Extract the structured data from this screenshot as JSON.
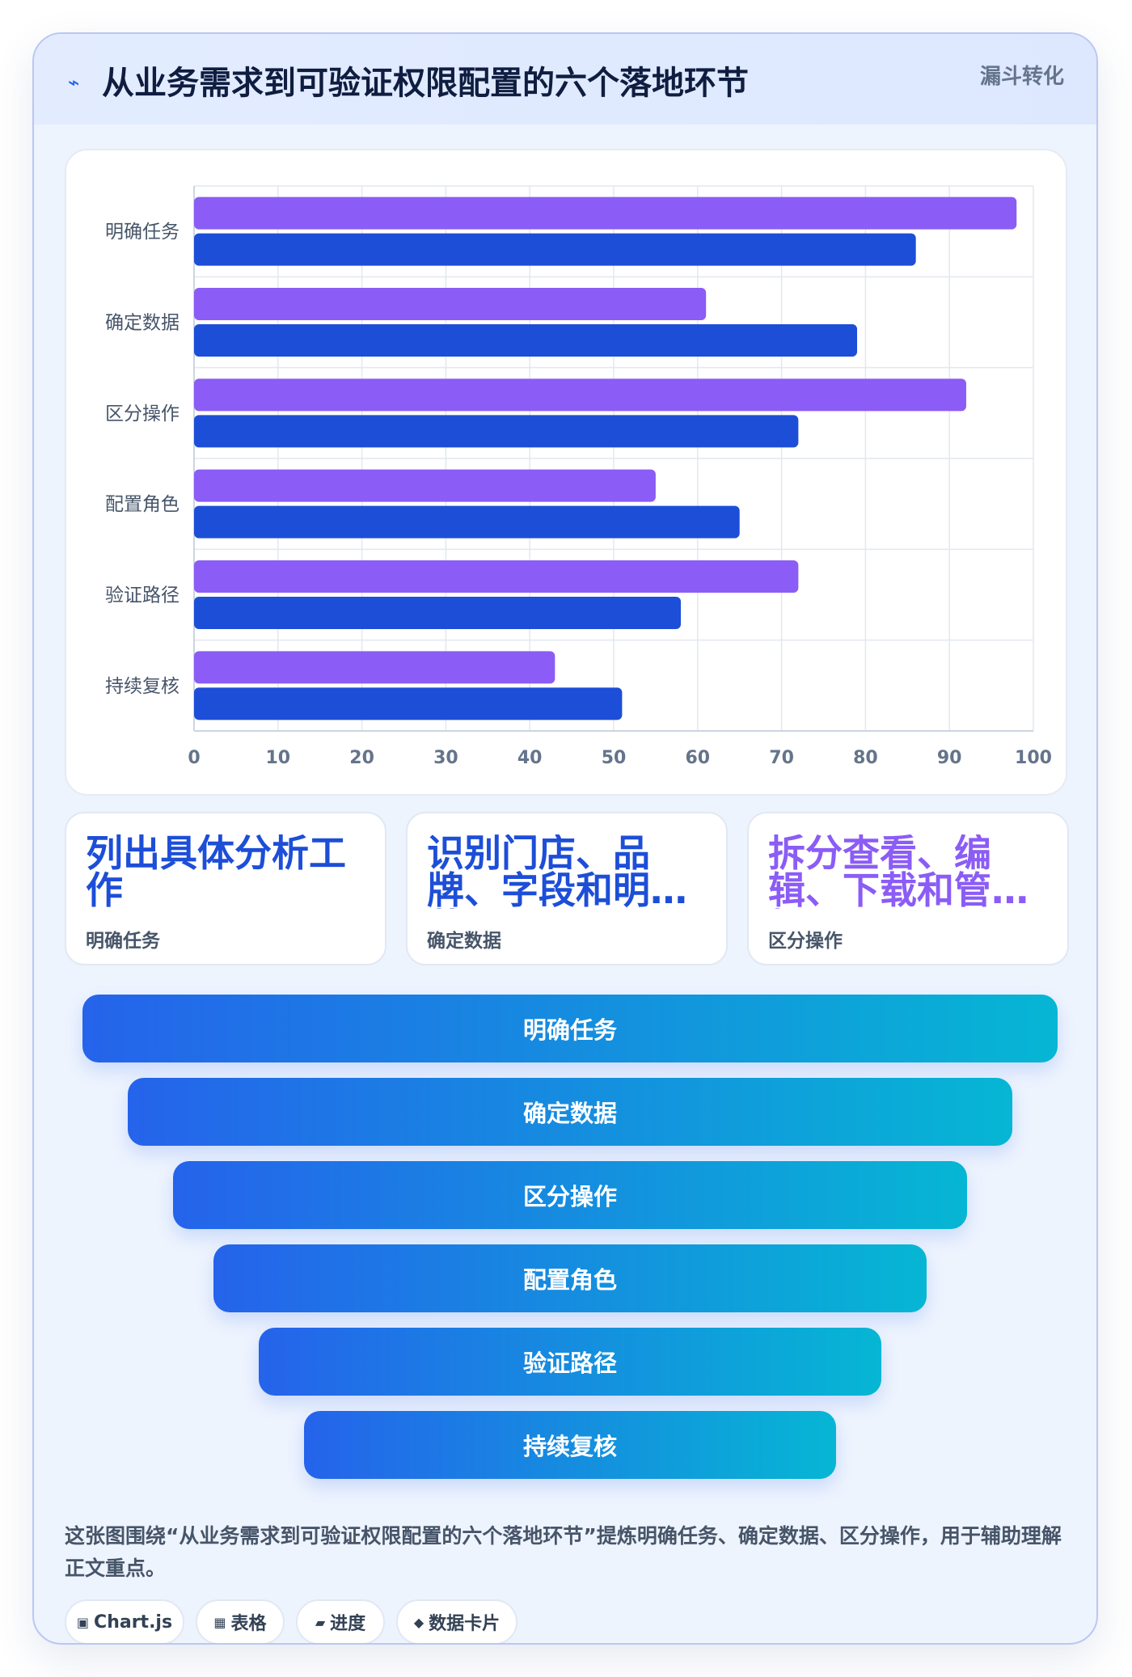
{
  "header": {
    "icon": "lightning-icon",
    "title": "从业务需求到可验证权限配置的六个落地环节",
    "tag": "漏斗转化"
  },
  "chart_data": {
    "type": "bar",
    "orientation": "horizontal",
    "categories": [
      "明确任务",
      "确定数据",
      "区分操作",
      "配置角色",
      "验证路径",
      "持续复核"
    ],
    "series": [
      {
        "color": "#8b5cf6",
        "values": [
          98,
          61,
          92,
          55,
          72,
          43
        ]
      },
      {
        "color": "#1d4ed8",
        "values": [
          86,
          79,
          72,
          65,
          58,
          51
        ]
      }
    ],
    "xlim": [
      0,
      100
    ],
    "xticks": [
      "0",
      "10",
      "20",
      "30",
      "40",
      "50",
      "60",
      "70",
      "80",
      "90",
      "100"
    ],
    "grid": true,
    "legend": "none"
  },
  "stat_cards": [
    {
      "value": "列出具体分析工作",
      "label": "明确任务",
      "color": "#1d4ed8"
    },
    {
      "value": "识别门店、品牌、字段和明细范围",
      "label": "确定数据",
      "color": "#1d4ed8"
    },
    {
      "value": "拆分查看、编辑、下载和管理权限",
      "label": "区分操作",
      "color": "#8b5cf6"
    }
  ],
  "funnel": [
    "明确任务",
    "确定数据",
    "区分操作",
    "配置角色",
    "验证路径",
    "持续复核"
  ],
  "description": "这张图围绕“从业务需求到可验证权限配置的六个落地环节”提炼明确任务、确定数据、区分操作，用于辅助理解正文重点。",
  "chips": [
    {
      "icon": "square-icon",
      "glyph": "▣",
      "label": "Chart.js"
    },
    {
      "icon": "table-icon",
      "glyph": "▦",
      "label": "表格"
    },
    {
      "icon": "progress-icon",
      "glyph": "▰",
      "label": "进度"
    },
    {
      "icon": "diamond-icon",
      "glyph": "◆",
      "label": "数据卡片"
    }
  ]
}
